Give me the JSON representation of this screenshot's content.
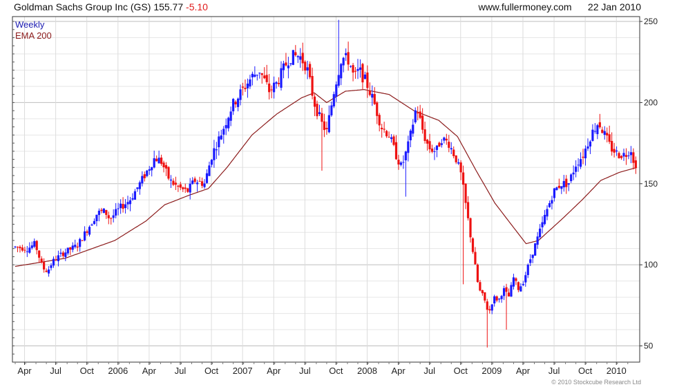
{
  "header": {
    "company": "Goldman Sachs Group Inc (GS)",
    "price": "155.77",
    "change": "-5.10",
    "site": "www.fullermoney.com",
    "date": "22 Jan 2010"
  },
  "copyright": "© 2010 Stockcube Research Ltd",
  "colors": {
    "up": "#1a1aff",
    "down": "#ee1111",
    "ema": "#8b1a1a",
    "grid": "#c8c8c8",
    "legend_weekly": "#1a1ab0",
    "legend_ema": "#8b1a1a"
  },
  "chart_data": {
    "type": "candlestick",
    "title": "Goldman Sachs Group Inc (GS)",
    "legend": [
      "Weekly",
      "EMA 200"
    ],
    "legend_placement": "top-left",
    "ylim": [
      40,
      253
    ],
    "yticks": [
      50,
      100,
      150,
      200,
      250
    ],
    "grid": true,
    "xticks": [
      {
        "label": "Apr",
        "t": 0.075
      },
      {
        "label": "Jul",
        "t": 0.325
      },
      {
        "label": "Oct",
        "t": 0.575
      },
      {
        "label": "2006",
        "t": 0.825
      },
      {
        "label": "Apr",
        "t": 1.075
      },
      {
        "label": "Jul",
        "t": 1.325
      },
      {
        "label": "Oct",
        "t": 1.575
      },
      {
        "label": "2007",
        "t": 1.825
      },
      {
        "label": "Apr",
        "t": 2.075
      },
      {
        "label": "Jul",
        "t": 2.325
      },
      {
        "label": "Oct",
        "t": 2.575
      },
      {
        "label": "2008",
        "t": 2.825
      },
      {
        "label": "Apr",
        "t": 3.075
      },
      {
        "label": "Jul",
        "t": 3.325
      },
      {
        "label": "Oct",
        "t": 3.575
      },
      {
        "label": "2009",
        "t": 3.825
      },
      {
        "label": "Apr",
        "t": 4.075
      },
      {
        "label": "Jul",
        "t": 4.325
      },
      {
        "label": "Oct",
        "t": 4.575
      },
      {
        "label": "2010",
        "t": 4.825
      }
    ],
    "t_range": [
      0,
      4.99
    ],
    "price_path": [
      [
        0.0,
        111
      ],
      [
        0.1,
        110
      ],
      [
        0.16,
        113
      ],
      [
        0.22,
        98
      ],
      [
        0.26,
        96
      ],
      [
        0.3,
        102
      ],
      [
        0.38,
        107
      ],
      [
        0.5,
        112
      ],
      [
        0.58,
        122
      ],
      [
        0.66,
        132
      ],
      [
        0.72,
        133
      ],
      [
        0.76,
        128
      ],
      [
        0.84,
        135
      ],
      [
        0.92,
        140
      ],
      [
        1.0,
        150
      ],
      [
        1.06,
        158
      ],
      [
        1.12,
        166
      ],
      [
        1.17,
        164
      ],
      [
        1.24,
        152
      ],
      [
        1.3,
        148
      ],
      [
        1.38,
        145
      ],
      [
        1.44,
        152
      ],
      [
        1.52,
        150
      ],
      [
        1.58,
        168
      ],
      [
        1.66,
        182
      ],
      [
        1.74,
        198
      ],
      [
        1.8,
        205
      ],
      [
        1.9,
        216
      ],
      [
        1.96,
        220
      ],
      [
        2.04,
        207
      ],
      [
        2.1,
        212
      ],
      [
        2.2,
        228
      ],
      [
        2.28,
        229
      ],
      [
        2.34,
        222
      ],
      [
        2.4,
        200
      ],
      [
        2.46,
        187
      ],
      [
        2.5,
        182
      ],
      [
        2.56,
        208
      ],
      [
        2.62,
        228
      ],
      [
        2.68,
        226
      ],
      [
        2.72,
        215
      ],
      [
        2.76,
        220
      ],
      [
        2.82,
        212
      ],
      [
        2.88,
        200
      ],
      [
        2.94,
        185
      ],
      [
        3.0,
        180
      ],
      [
        3.06,
        167
      ],
      [
        3.1,
        160
      ],
      [
        3.16,
        175
      ],
      [
        3.22,
        198
      ],
      [
        3.28,
        180
      ],
      [
        3.32,
        172
      ],
      [
        3.38,
        170
      ],
      [
        3.42,
        178
      ],
      [
        3.48,
        175
      ],
      [
        3.54,
        165
      ],
      [
        3.58,
        155
      ],
      [
        3.64,
        125
      ],
      [
        3.68,
        105
      ],
      [
        3.72,
        85
      ],
      [
        3.76,
        80
      ],
      [
        3.8,
        70
      ],
      [
        3.84,
        80
      ],
      [
        3.88,
        78
      ],
      [
        3.92,
        85
      ],
      [
        3.96,
        80
      ],
      [
        4.0,
        92
      ],
      [
        4.04,
        85
      ],
      [
        4.08,
        90
      ],
      [
        4.14,
        105
      ],
      [
        4.2,
        118
      ],
      [
        4.26,
        132
      ],
      [
        4.32,
        145
      ],
      [
        4.38,
        150
      ],
      [
        4.44,
        150
      ],
      [
        4.5,
        162
      ],
      [
        4.56,
        168
      ],
      [
        4.62,
        180
      ],
      [
        4.68,
        188
      ],
      [
        4.72,
        182
      ],
      [
        4.78,
        172
      ],
      [
        4.84,
        168
      ],
      [
        4.9,
        168
      ],
      [
        4.94,
        172
      ],
      [
        4.99,
        156
      ]
    ],
    "ema_path": [
      [
        0.0,
        99
      ],
      [
        0.4,
        104
      ],
      [
        0.8,
        115
      ],
      [
        1.05,
        127
      ],
      [
        1.2,
        137
      ],
      [
        1.4,
        143
      ],
      [
        1.55,
        147
      ],
      [
        1.7,
        160
      ],
      [
        1.9,
        180
      ],
      [
        2.1,
        193
      ],
      [
        2.3,
        203
      ],
      [
        2.4,
        206
      ],
      [
        2.5,
        200
      ],
      [
        2.65,
        207
      ],
      [
        2.8,
        208
      ],
      [
        3.0,
        205
      ],
      [
        3.2,
        195
      ],
      [
        3.4,
        189
      ],
      [
        3.55,
        179
      ],
      [
        3.7,
        158
      ],
      [
        3.85,
        138
      ],
      [
        4.0,
        123
      ],
      [
        4.1,
        113
      ],
      [
        4.2,
        115
      ],
      [
        4.3,
        122
      ],
      [
        4.4,
        129
      ],
      [
        4.55,
        140
      ],
      [
        4.7,
        152
      ],
      [
        4.85,
        157
      ],
      [
        4.99,
        160
      ]
    ],
    "wick_spikes": [
      {
        "t": 2.465,
        "low": 158
      },
      {
        "t": 2.605,
        "high": 251
      },
      {
        "t": 3.13,
        "low": 142
      },
      {
        "t": 3.6,
        "low": 88
      },
      {
        "t": 3.785,
        "low": 49
      },
      {
        "t": 3.945,
        "low": 60
      },
      {
        "t": 4.685,
        "high": 193
      }
    ]
  }
}
